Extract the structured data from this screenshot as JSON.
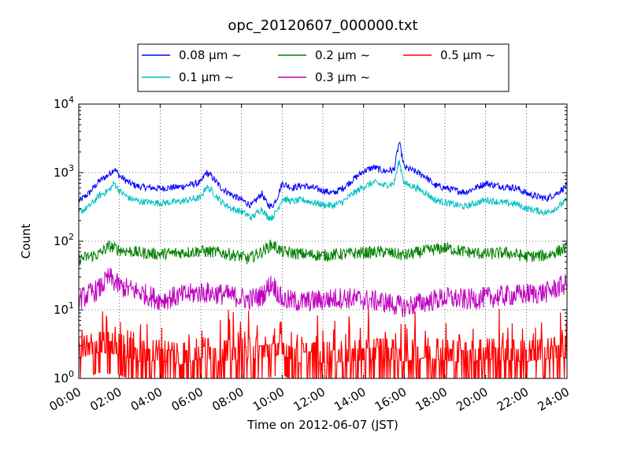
{
  "chart_data": {
    "type": "line",
    "title": "opc_20120607_000000.txt",
    "xlabel": "Time on 2012-06-07 (JST)",
    "ylabel": "Count",
    "yscale": "log",
    "ylim": [
      1,
      10000
    ],
    "xlim": [
      0,
      24
    ],
    "x_unit": "hours",
    "x_ticks": [
      0,
      2,
      4,
      6,
      8,
      10,
      12,
      14,
      16,
      18,
      20,
      22,
      24
    ],
    "x_tick_labels": [
      "00:00",
      "02:00",
      "04:00",
      "06:00",
      "08:00",
      "10:00",
      "12:00",
      "14:00",
      "16:00",
      "18:00",
      "20:00",
      "22:00",
      "24:00"
    ],
    "y_ticks": [
      1,
      10,
      100,
      1000,
      10000
    ],
    "y_tick_base": "10",
    "y_tick_exponents": [
      "0",
      "1",
      "2",
      "3",
      "4"
    ],
    "grid": true,
    "legend_position": "top-center",
    "series": [
      {
        "name": "0.08 μm ~",
        "color": "#0000ff",
        "x": [
          0,
          0.5,
          1,
          1.5,
          1.75,
          2,
          2.5,
          3,
          4,
          5,
          6,
          6.25,
          6.5,
          7,
          7.5,
          8,
          8.5,
          9,
          9.25,
          9.5,
          9.75,
          10,
          10.5,
          11,
          11.5,
          12,
          12.5,
          13,
          13.5,
          14,
          14.5,
          15,
          15.5,
          15.75,
          16,
          16.5,
          17,
          17.5,
          18,
          18.5,
          19,
          19.5,
          20,
          20.5,
          21,
          21.5,
          22,
          22.5,
          23,
          23.5,
          24
        ],
        "y": [
          380,
          500,
          750,
          950,
          1150,
          900,
          700,
          620,
          590,
          620,
          720,
          1000,
          900,
          600,
          480,
          400,
          330,
          500,
          350,
          320,
          430,
          700,
          600,
          650,
          600,
          550,
          500,
          600,
          800,
          1050,
          1200,
          1050,
          1100,
          2800,
          1200,
          1050,
          900,
          650,
          600,
          550,
          520,
          600,
          700,
          650,
          620,
          600,
          500,
          450,
          420,
          500,
          650
        ]
      },
      {
        "name": "0.1 μm ~",
        "color": "#00bfbf",
        "x": [
          0,
          0.5,
          1,
          1.5,
          1.75,
          2,
          2.5,
          3,
          4,
          5,
          6,
          6.25,
          6.5,
          7,
          7.5,
          8,
          8.5,
          9,
          9.25,
          9.5,
          9.75,
          10,
          10.5,
          11,
          11.5,
          12,
          12.5,
          13,
          13.5,
          14,
          14.5,
          15,
          15.5,
          15.75,
          16,
          16.5,
          17,
          17.5,
          18,
          18.5,
          19,
          19.5,
          20,
          20.5,
          21,
          21.5,
          22,
          22.5,
          23,
          23.5,
          24
        ],
        "y": [
          260,
          320,
          460,
          560,
          700,
          540,
          420,
          380,
          360,
          380,
          430,
          620,
          560,
          380,
          300,
          270,
          220,
          300,
          230,
          220,
          280,
          420,
          380,
          400,
          370,
          340,
          330,
          380,
          500,
          620,
          720,
          650,
          700,
          1500,
          700,
          620,
          520,
          400,
          370,
          340,
          320,
          360,
          400,
          380,
          360,
          350,
          300,
          280,
          260,
          310,
          400
        ]
      },
      {
        "name": "0.2 μm ~",
        "color": "#008000",
        "x": [
          0,
          1,
          1.5,
          2,
          3,
          4,
          5,
          6,
          7,
          8,
          8.3,
          9,
          9.5,
          10,
          11,
          12,
          13,
          14,
          15,
          16,
          17,
          18,
          19,
          20,
          21,
          22,
          23,
          24
        ],
        "y": [
          55,
          65,
          85,
          75,
          68,
          65,
          68,
          72,
          68,
          60,
          55,
          70,
          90,
          70,
          65,
          62,
          65,
          68,
          70,
          62,
          72,
          80,
          70,
          65,
          68,
          60,
          62,
          80
        ]
      },
      {
        "name": "0.3 μm ~",
        "color": "#bf00bf",
        "x": [
          0,
          0.5,
          1,
          1.5,
          2,
          3,
          4,
          5,
          6,
          7,
          8,
          8.3,
          9,
          9.5,
          10,
          11,
          12,
          13,
          14,
          15,
          16,
          17,
          18,
          19,
          20,
          21,
          22,
          23,
          24
        ],
        "y": [
          14,
          17,
          20,
          30,
          22,
          18,
          14,
          16,
          18,
          17,
          15,
          14,
          16,
          25,
          14,
          13,
          14,
          15,
          14,
          13,
          11,
          13,
          15,
          14,
          15,
          16,
          17,
          18,
          24
        ]
      },
      {
        "name": "0.5 μm ~",
        "color": "#ff0000",
        "x": [
          0,
          1,
          2,
          3,
          4,
          5,
          6,
          7,
          8,
          9,
          10,
          11,
          12,
          13,
          14,
          15,
          16,
          17,
          18,
          19,
          20,
          21,
          22,
          23,
          24
        ],
        "y": [
          2.5,
          3,
          2.8,
          2.2,
          2.3,
          2,
          2.5,
          2.2,
          2.4,
          2.5,
          2.8,
          2,
          2.1,
          2.2,
          2.3,
          2.4,
          2.2,
          2.5,
          2.3,
          2.1,
          2.4,
          2.3,
          2.2,
          2.4,
          2.6
        ]
      }
    ]
  }
}
